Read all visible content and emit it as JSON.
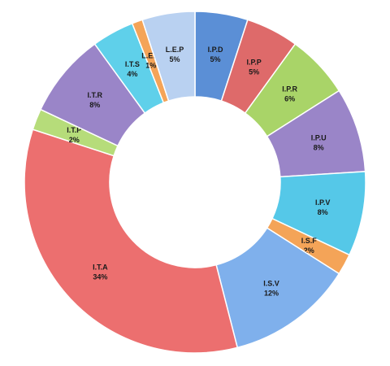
{
  "chart_data": {
    "type": "pie",
    "donut": true,
    "title": "",
    "categories": [
      "I.P.D",
      "I.P.P",
      "I.P.R",
      "I.P.U",
      "I.P.V",
      "I.S.F",
      "I.S.V",
      "I.T.A",
      "I.T.P",
      "I.T.R",
      "I.T.S",
      "L.E.B",
      "L.E.P"
    ],
    "values": [
      5,
      5,
      6,
      8,
      8,
      2,
      12,
      34,
      2,
      8,
      4,
      1,
      5
    ],
    "labels": [
      "5%",
      "5%",
      "6%",
      "8%",
      "8%",
      "2%",
      "12%",
      "34%",
      "2%",
      "8%",
      "4%",
      "1%",
      "5%"
    ],
    "colors": [
      "#5b8fd6",
      "#de6a6a",
      "#a9d468",
      "#9a85c8",
      "#55c8e8",
      "#f4a458",
      "#7fb0ec",
      "#ec6f6f",
      "#b6dc7a",
      "#9a85c8",
      "#5fd0ea",
      "#f4a458",
      "#b9d1f1"
    ],
    "start_angle_deg": 0,
    "direction": "clockwise",
    "legend": "none"
  }
}
